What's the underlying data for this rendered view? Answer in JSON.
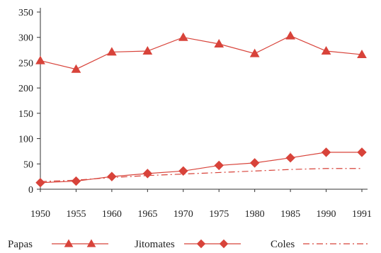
{
  "colors": {
    "series": "#d8433a",
    "axis": "#333333"
  },
  "chart_data": {
    "type": "line",
    "title": "",
    "xlabel": "",
    "ylabel": "",
    "categories": [
      "1950",
      "1955",
      "1960",
      "1965",
      "1970",
      "1975",
      "1980",
      "1985",
      "1990",
      "1991"
    ],
    "ylim": [
      0,
      350
    ],
    "yticks": [
      0,
      50,
      100,
      150,
      200,
      250,
      300,
      350
    ],
    "grid": false,
    "legend_position": "bottom",
    "series": [
      {
        "name": "Papas",
        "marker": "triangle",
        "line": "solid",
        "values": [
          254,
          237,
          271,
          273,
          300,
          287,
          268,
          303,
          273,
          266
        ]
      },
      {
        "name": "Jitomates",
        "marker": "diamond",
        "line": "solid",
        "values": [
          13,
          16,
          25,
          31,
          36,
          47,
          52,
          62,
          73,
          73
        ]
      },
      {
        "name": "Coles",
        "marker": "none",
        "line": "dash-dot",
        "values": [
          15,
          18,
          23,
          27,
          30,
          33,
          36,
          39,
          41,
          41
        ]
      }
    ]
  }
}
